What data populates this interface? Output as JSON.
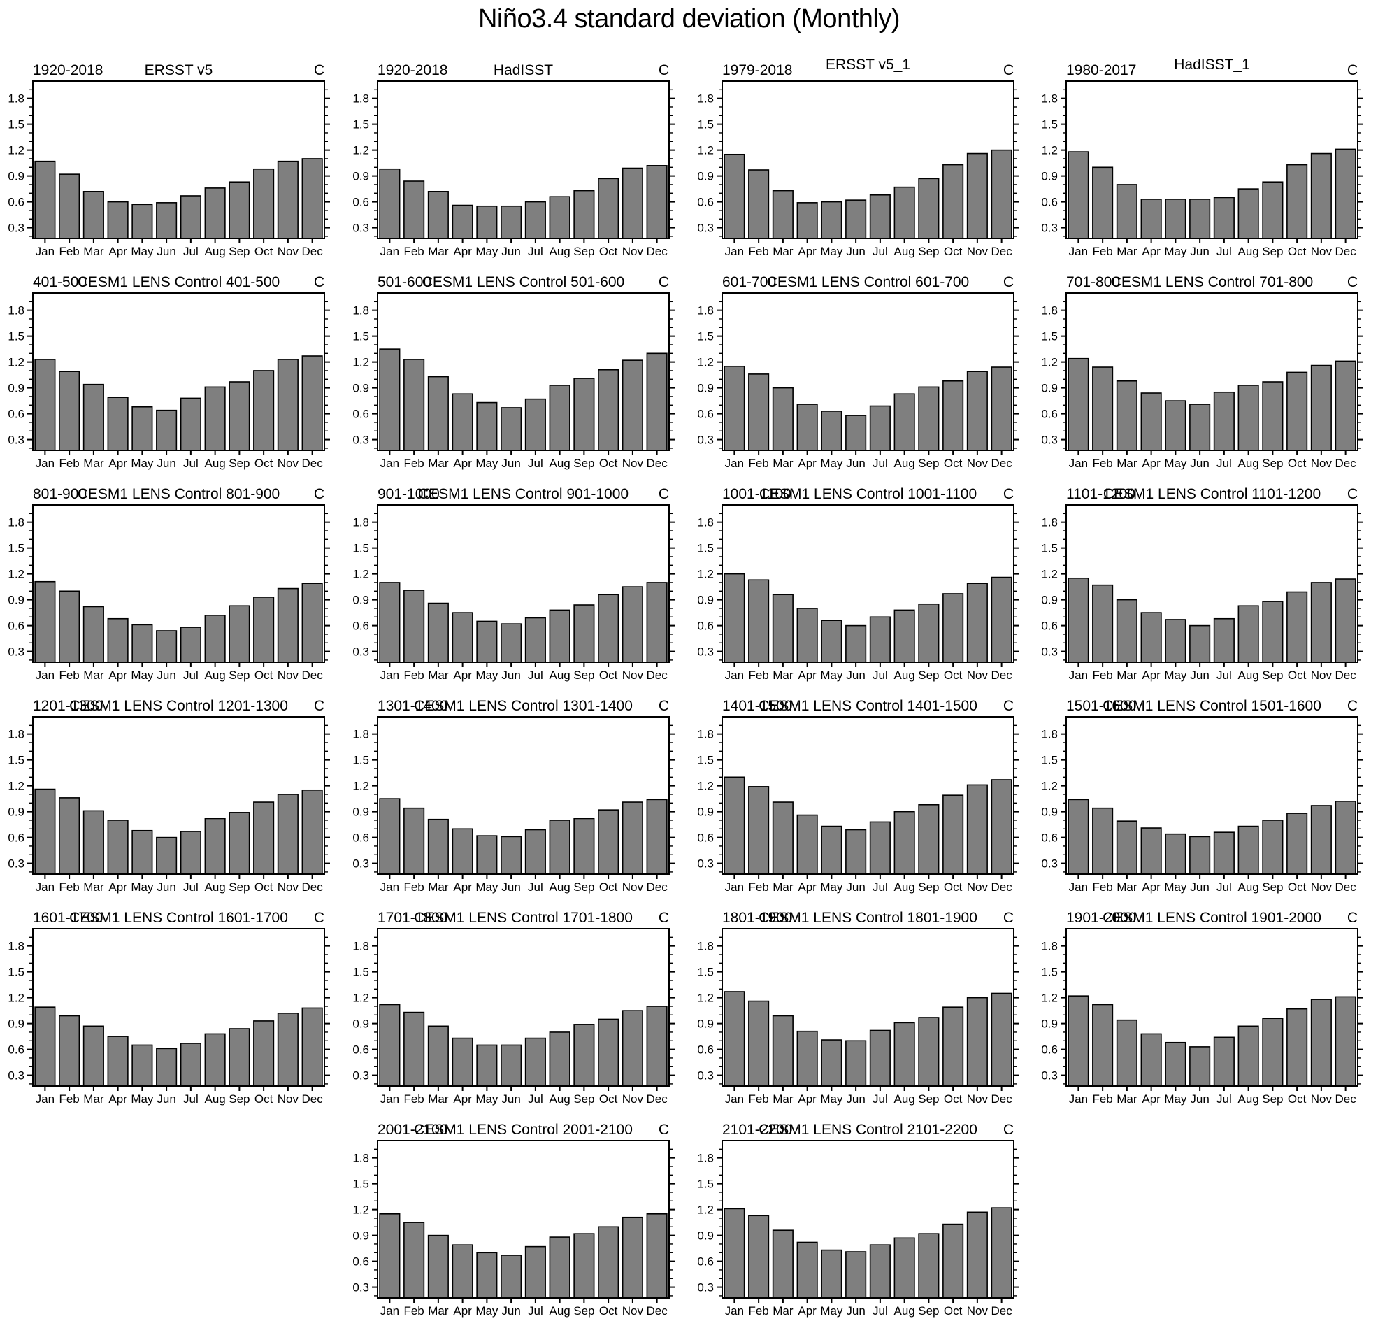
{
  "chart_data": {
    "type": "bar",
    "title": "Niño3.4 standard deviation (Monthly)",
    "categories": [
      "Jan",
      "Feb",
      "Mar",
      "Apr",
      "May",
      "Jun",
      "Jul",
      "Aug",
      "Sep",
      "Oct",
      "Nov",
      "Dec"
    ],
    "xlabel": "",
    "ylabel": "",
    "unit_corner_label": "C",
    "ylim": [
      0.175,
      2.0
    ],
    "ytick_labels": [
      "0.3",
      "0.6",
      "0.9",
      "1.2",
      "1.5",
      "1.8"
    ],
    "ytick_values": [
      0.3,
      0.6,
      0.9,
      1.2,
      1.5,
      1.8
    ],
    "yminor_values": [
      0.2,
      0.4,
      0.5,
      0.7,
      0.8,
      1.0,
      1.1,
      1.3,
      1.4,
      1.6,
      1.7,
      1.9
    ],
    "grid": false,
    "legend": "none",
    "bar_fill": "#7f7f7f",
    "bar_stroke": "#000000",
    "axis_color": "#000000",
    "charts": [
      {
        "period": "1920-2018",
        "dataset": "ERSST v5",
        "corner": "C",
        "row": 1,
        "col": 1,
        "values": [
          1.07,
          0.92,
          0.72,
          0.6,
          0.57,
          0.59,
          0.67,
          0.76,
          0.83,
          0.98,
          1.07,
          1.1
        ]
      },
      {
        "period": "1920-2018",
        "dataset": "HadISST",
        "corner": "C",
        "row": 1,
        "col": 2,
        "values": [
          0.98,
          0.84,
          0.72,
          0.56,
          0.55,
          0.55,
          0.6,
          0.66,
          0.73,
          0.87,
          0.99,
          1.02
        ]
      },
      {
        "period": "1979-2018",
        "dataset": "ERSST v5_1",
        "corner": "C",
        "row": 1,
        "col": 3,
        "values": [
          1.15,
          0.97,
          0.73,
          0.59,
          0.6,
          0.62,
          0.68,
          0.77,
          0.87,
          1.03,
          1.16,
          1.2
        ]
      },
      {
        "period": "1980-2017",
        "dataset": "HadISST_1",
        "corner": "C",
        "row": 1,
        "col": 4,
        "values": [
          1.18,
          1.0,
          0.8,
          0.63,
          0.63,
          0.63,
          0.65,
          0.75,
          0.83,
          1.03,
          1.16,
          1.21
        ]
      },
      {
        "period": "401-500",
        "dataset": "CESM1 LENS Control 401-500",
        "corner": "C",
        "row": 2,
        "col": 1,
        "values": [
          1.23,
          1.09,
          0.94,
          0.79,
          0.68,
          0.64,
          0.78,
          0.91,
          0.97,
          1.1,
          1.23,
          1.27
        ]
      },
      {
        "period": "501-600",
        "dataset": "CESM1 LENS Control 501-600",
        "corner": "C",
        "row": 2,
        "col": 2,
        "values": [
          1.35,
          1.23,
          1.03,
          0.83,
          0.73,
          0.67,
          0.77,
          0.93,
          1.01,
          1.11,
          1.22,
          1.3
        ]
      },
      {
        "period": "601-700",
        "dataset": "CESM1 LENS Control 601-700",
        "corner": "C",
        "row": 2,
        "col": 3,
        "values": [
          1.15,
          1.06,
          0.9,
          0.71,
          0.63,
          0.58,
          0.69,
          0.83,
          0.91,
          0.98,
          1.09,
          1.14
        ]
      },
      {
        "period": "701-800",
        "dataset": "CESM1 LENS Control 701-800",
        "corner": "C",
        "row": 2,
        "col": 4,
        "values": [
          1.24,
          1.14,
          0.98,
          0.84,
          0.75,
          0.71,
          0.85,
          0.93,
          0.97,
          1.08,
          1.16,
          1.21
        ]
      },
      {
        "period": "801-900",
        "dataset": "CESM1 LENS Control 801-900",
        "corner": "C",
        "row": 3,
        "col": 1,
        "values": [
          1.11,
          1.0,
          0.82,
          0.68,
          0.61,
          0.54,
          0.58,
          0.72,
          0.83,
          0.93,
          1.03,
          1.09
        ]
      },
      {
        "period": "901-1000",
        "dataset": "CESM1 LENS Control 901-1000",
        "corner": "C",
        "row": 3,
        "col": 2,
        "values": [
          1.1,
          1.01,
          0.86,
          0.75,
          0.65,
          0.62,
          0.69,
          0.78,
          0.84,
          0.96,
          1.05,
          1.1
        ]
      },
      {
        "period": "1001-1100",
        "dataset": "CESM1 LENS Control 1001-1100",
        "corner": "C",
        "row": 3,
        "col": 3,
        "values": [
          1.2,
          1.13,
          0.96,
          0.8,
          0.66,
          0.6,
          0.7,
          0.78,
          0.85,
          0.97,
          1.09,
          1.16
        ]
      },
      {
        "period": "1101-1200",
        "dataset": "CESM1 LENS Control 1101-1200",
        "corner": "C",
        "row": 3,
        "col": 4,
        "values": [
          1.15,
          1.07,
          0.9,
          0.75,
          0.67,
          0.6,
          0.68,
          0.83,
          0.88,
          0.99,
          1.1,
          1.14
        ]
      },
      {
        "period": "1201-1300",
        "dataset": "CESM1 LENS Control 1201-1300",
        "corner": "C",
        "row": 4,
        "col": 1,
        "values": [
          1.16,
          1.06,
          0.91,
          0.8,
          0.68,
          0.6,
          0.67,
          0.82,
          0.89,
          1.01,
          1.1,
          1.15
        ]
      },
      {
        "period": "1301-1400",
        "dataset": "CESM1 LENS Control 1301-1400",
        "corner": "C",
        "row": 4,
        "col": 2,
        "values": [
          1.05,
          0.94,
          0.81,
          0.7,
          0.62,
          0.61,
          0.69,
          0.8,
          0.82,
          0.92,
          1.01,
          1.04
        ]
      },
      {
        "period": "1401-1500",
        "dataset": "CESM1 LENS Control 1401-1500",
        "corner": "C",
        "row": 4,
        "col": 3,
        "values": [
          1.3,
          1.19,
          1.01,
          0.86,
          0.73,
          0.69,
          0.78,
          0.9,
          0.98,
          1.09,
          1.21,
          1.27
        ]
      },
      {
        "period": "1501-1600",
        "dataset": "CESM1 LENS Control 1501-1600",
        "corner": "C",
        "row": 4,
        "col": 4,
        "values": [
          1.04,
          0.94,
          0.79,
          0.71,
          0.64,
          0.61,
          0.66,
          0.73,
          0.8,
          0.88,
          0.97,
          1.02
        ]
      },
      {
        "period": "1601-1700",
        "dataset": "CESM1 LENS Control 1601-1700",
        "corner": "C",
        "row": 5,
        "col": 1,
        "values": [
          1.09,
          0.99,
          0.87,
          0.75,
          0.65,
          0.61,
          0.67,
          0.78,
          0.84,
          0.93,
          1.02,
          1.08
        ]
      },
      {
        "period": "1701-1800",
        "dataset": "CESM1 LENS Control 1701-1800",
        "corner": "C",
        "row": 5,
        "col": 2,
        "values": [
          1.12,
          1.03,
          0.87,
          0.73,
          0.65,
          0.65,
          0.73,
          0.8,
          0.89,
          0.95,
          1.05,
          1.1
        ]
      },
      {
        "period": "1801-1900",
        "dataset": "CESM1 LENS Control 1801-1900",
        "corner": "C",
        "row": 5,
        "col": 3,
        "values": [
          1.27,
          1.16,
          0.99,
          0.81,
          0.71,
          0.7,
          0.82,
          0.91,
          0.97,
          1.09,
          1.2,
          1.25
        ]
      },
      {
        "period": "1901-2000",
        "dataset": "CESM1 LENS Control 1901-2000",
        "corner": "C",
        "row": 5,
        "col": 4,
        "values": [
          1.22,
          1.12,
          0.94,
          0.78,
          0.68,
          0.63,
          0.74,
          0.87,
          0.96,
          1.07,
          1.18,
          1.21
        ]
      },
      {
        "period": "2001-2100",
        "dataset": "CESM1 LENS Control 2001-2100",
        "corner": "C",
        "row": 6,
        "col": 2,
        "values": [
          1.15,
          1.05,
          0.9,
          0.79,
          0.7,
          0.67,
          0.77,
          0.88,
          0.92,
          1.0,
          1.11,
          1.15
        ]
      },
      {
        "period": "2101-2200",
        "dataset": "CESM1 LENS Control 2101-2200",
        "corner": "C",
        "row": 6,
        "col": 3,
        "values": [
          1.21,
          1.13,
          0.96,
          0.82,
          0.73,
          0.71,
          0.79,
          0.87,
          0.92,
          1.03,
          1.17,
          1.22
        ]
      }
    ]
  }
}
